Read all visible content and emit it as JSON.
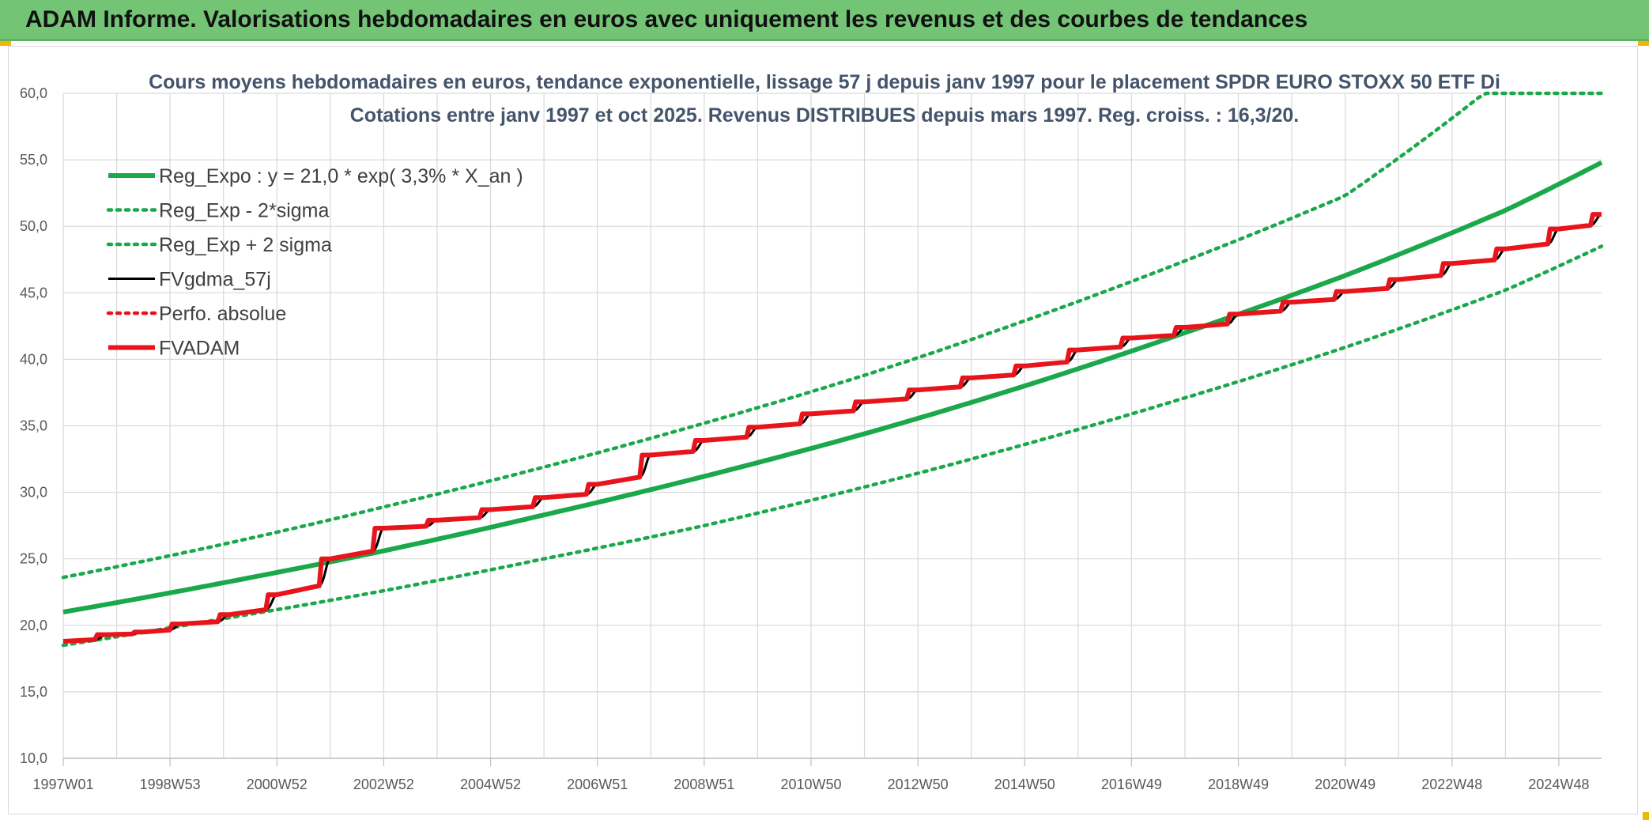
{
  "header": {
    "title": "ADAM Informe. Valorisations hebdomadaires en euros avec uniquement les revenus et des courbes de tendances"
  },
  "colors": {
    "banner": "#74c476",
    "trend": "#1aa84a",
    "fv57": "#000000",
    "fvadam": "#e8141b",
    "perfo": "#e8141b",
    "grid": "#d9d9d9",
    "title_text": "#44546a"
  },
  "chart_data": {
    "type": "line",
    "title": "Cours moyens hebdomadaires en euros, tendance exponentielle, lissage 57 j depuis janv 1997 pour le placement SPDR EURO STOXX 50 ETF Di",
    "subtitle": "Cotations entre janv 1997 et oct 2025. Revenus DISTRIBUES depuis mars 1997. Reg. croiss. : 16,3/20.",
    "x_start_year": 1997.0,
    "x_end_year": 2025.8,
    "ylim": [
      10,
      60
    ],
    "y_ticks": [
      "10,0",
      "15,0",
      "20,0",
      "25,0",
      "30,0",
      "35,0",
      "40,0",
      "45,0",
      "50,0",
      "55,0",
      "60,0"
    ],
    "x_ticks": [
      {
        "label": "1997W01",
        "year": 1997.0
      },
      {
        "label": "1998W53",
        "year": 1999.0
      },
      {
        "label": "2000W52",
        "year": 2001.0
      },
      {
        "label": "2002W52",
        "year": 2003.0
      },
      {
        "label": "2004W52",
        "year": 2005.0
      },
      {
        "label": "2006W51",
        "year": 2007.0
      },
      {
        "label": "2008W51",
        "year": 2009.0
      },
      {
        "label": "2010W50",
        "year": 2011.0
      },
      {
        "label": "2012W50",
        "year": 2013.0
      },
      {
        "label": "2014W50",
        "year": 2015.0
      },
      {
        "label": "2016W49",
        "year": 2017.0
      },
      {
        "label": "2018W49",
        "year": 2019.0
      },
      {
        "label": "2020W49",
        "year": 2021.0
      },
      {
        "label": "2022W48",
        "year": 2023.0
      },
      {
        "label": "2024W48",
        "year": 2025.0
      }
    ],
    "grid": true,
    "legend_position": "top-left",
    "series": [
      {
        "name": "Reg_Expo : y = 21,0 * exp( 3,3% * X_an )",
        "style": "solid-thick",
        "color": "#1aa84a",
        "x": [
          1997,
          2000,
          2003,
          2006,
          2009,
          2012,
          2015,
          2018,
          2021,
          2024,
          2025.8
        ],
        "y": [
          21.0,
          23.2,
          25.6,
          28.3,
          31.2,
          34.4,
          38.0,
          42.0,
          46.3,
          51.2,
          54.8
        ]
      },
      {
        "name": "Reg_Exp - 2*sigma",
        "style": "dotted",
        "color": "#1aa84a",
        "x": [
          1997,
          2000,
          2003,
          2006,
          2009,
          2012,
          2015,
          2018,
          2021,
          2024,
          2025.8
        ],
        "y": [
          18.5,
          20.5,
          22.6,
          25.0,
          27.5,
          30.4,
          33.6,
          37.1,
          40.9,
          45.2,
          48.5
        ]
      },
      {
        "name": "Reg_Exp + 2 sigma",
        "style": "dotted",
        "color": "#1aa84a",
        "x": [
          1997,
          2000,
          2003,
          2006,
          2009,
          2012,
          2015,
          2018,
          2021,
          2023.6,
          2025.8
        ],
        "y": [
          23.6,
          26.1,
          28.9,
          31.9,
          35.2,
          38.8,
          42.9,
          47.4,
          52.3,
          60.0,
          60.0
        ]
      },
      {
        "name": "FVgdma_57j",
        "style": "solid",
        "color": "#000000",
        "x": [
          1997.0,
          1997.8,
          1998.5,
          1999.2,
          2000.1,
          2001.0,
          2002.0,
          2003.0,
          2004.0,
          2005.0,
          2006.0,
          2007.0,
          2008.0,
          2009.0,
          2010.0,
          2011.0,
          2012.0,
          2013.0,
          2014.0,
          2015.0,
          2016.0,
          2017.0,
          2018.0,
          2019.0,
          2020.0,
          2021.0,
          2022.0,
          2023.0,
          2024.0,
          2025.0,
          2025.8
        ],
        "y": [
          18.8,
          19.3,
          19.5,
          20.1,
          20.8,
          22.3,
          25.0,
          27.3,
          27.9,
          28.7,
          29.6,
          30.6,
          32.8,
          33.9,
          34.9,
          35.9,
          36.8,
          37.7,
          38.6,
          39.5,
          40.7,
          41.6,
          42.4,
          43.4,
          44.3,
          45.1,
          46.0,
          47.2,
          48.3,
          49.8,
          50.9
        ]
      },
      {
        "name": "Perfo. absolue",
        "style": "dotted",
        "color": "#e8141b",
        "x": [],
        "y": []
      },
      {
        "name": "FVADAM",
        "style": "step-thick",
        "color": "#e8141b",
        "x": [
          1997.0,
          1997.8,
          1998.5,
          1999.2,
          2000.1,
          2001.0,
          2002.0,
          2003.0,
          2004.0,
          2005.0,
          2006.0,
          2007.0,
          2008.0,
          2009.0,
          2010.0,
          2011.0,
          2012.0,
          2013.0,
          2014.0,
          2015.0,
          2016.0,
          2017.0,
          2018.0,
          2019.0,
          2020.0,
          2021.0,
          2022.0,
          2023.0,
          2024.0,
          2025.0,
          2025.8
        ],
        "y": [
          18.8,
          19.3,
          19.5,
          20.1,
          20.8,
          22.3,
          25.0,
          27.3,
          27.9,
          28.7,
          29.6,
          30.6,
          32.8,
          33.9,
          34.9,
          35.9,
          36.8,
          37.7,
          38.6,
          39.5,
          40.7,
          41.6,
          42.4,
          43.4,
          44.3,
          45.1,
          46.0,
          47.2,
          48.3,
          49.8,
          50.9
        ]
      }
    ]
  }
}
